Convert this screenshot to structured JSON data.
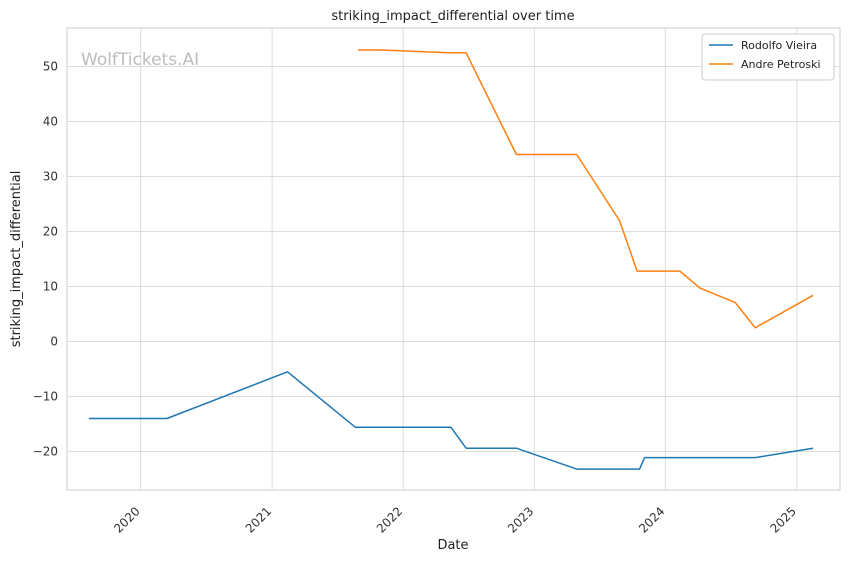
{
  "chart_data": {
    "type": "line",
    "title": "striking_impact_differential over time",
    "xlabel": "Date",
    "ylabel": "striking_impact_differential",
    "watermark": "WolfTickets.AI",
    "x_ticks": [
      "2020",
      "2021",
      "2022",
      "2023",
      "2024",
      "2025"
    ],
    "y_ticks": [
      "−20",
      "−10",
      "0",
      "10",
      "20",
      "30",
      "40",
      "50"
    ],
    "xlim": [
      "2019-06-10",
      "2025-05-01"
    ],
    "ylim": [
      -27,
      57
    ],
    "grid": true,
    "legend_position": "top-right",
    "series": [
      {
        "name": "Rodolfo Vieira",
        "color": "#1f77b4",
        "points": [
          [
            "2019-08-10",
            -14.0
          ],
          [
            "2020-03-14",
            -14.0
          ],
          [
            "2021-02-13",
            -5.5
          ],
          [
            "2021-08-21",
            -15.6
          ],
          [
            "2022-05-14",
            -15.6
          ],
          [
            "2022-06-25",
            -19.4
          ],
          [
            "2022-11-12",
            -19.4
          ],
          [
            "2023-04-29",
            -23.2
          ],
          [
            "2023-10-21",
            -23.2
          ],
          [
            "2023-11-04",
            -21.1
          ],
          [
            "2024-09-07",
            -21.1
          ],
          [
            "2025-02-15",
            -19.4
          ]
        ]
      },
      {
        "name": "Andre Petroski",
        "color": "#ff7f0e",
        "points": [
          [
            "2021-08-28",
            53.0
          ],
          [
            "2021-10-30",
            53.0
          ],
          [
            "2022-05-07",
            52.5
          ],
          [
            "2022-06-25",
            52.5
          ],
          [
            "2022-11-12",
            34.0
          ],
          [
            "2023-04-29",
            34.0
          ],
          [
            "2023-08-26",
            22.0
          ],
          [
            "2023-10-14",
            12.8
          ],
          [
            "2024-02-10",
            12.8
          ],
          [
            "2024-04-06",
            9.7
          ],
          [
            "2024-07-13",
            7.1
          ],
          [
            "2024-09-07",
            2.5
          ],
          [
            "2025-02-15",
            8.4
          ]
        ]
      }
    ]
  }
}
